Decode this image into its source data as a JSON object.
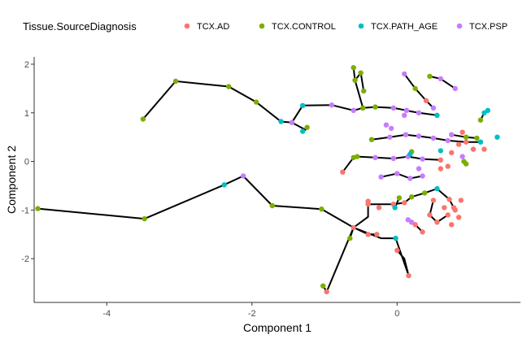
{
  "chart_data": {
    "type": "scatter",
    "title": "",
    "xlabel": "Component 1",
    "ylabel": "Component 2",
    "xlim": [
      -5.0,
      1.7
    ],
    "ylim": [
      -2.9,
      2.15
    ],
    "x_ticks": [
      -4,
      -2,
      0
    ],
    "y_ticks": [
      -2,
      -1,
      0,
      1,
      2
    ],
    "grid": false,
    "legend": {
      "title": "Tissue.SourceDiagnosis",
      "placement": "top",
      "entries": [
        {
          "name": "TCX.AD",
          "color": "#F8766D"
        },
        {
          "name": "TCX.CONTROL",
          "color": "#7CAE00"
        },
        {
          "name": "TCX.PATH_AGE",
          "color": "#00BFC4"
        },
        {
          "name": "TCX.PSP",
          "color": "#C77CFF"
        }
      ]
    },
    "edges": [
      [
        [
          -3.5,
          0.87
        ],
        [
          -3.05,
          1.65
        ],
        [
          -2.32,
          1.54
        ],
        [
          -1.94,
          1.22
        ],
        [
          -1.6,
          0.82
        ],
        [
          -1.45,
          0.8
        ],
        [
          -1.26,
          0.65
        ]
      ],
      [
        [
          -1.45,
          0.8
        ],
        [
          -1.3,
          1.15
        ],
        [
          -0.9,
          1.16
        ],
        [
          -0.6,
          1.05
        ],
        [
          -0.47,
          1.1
        ],
        [
          -0.3,
          1.12
        ]
      ],
      [
        [
          -0.47,
          1.1
        ],
        [
          -0.58,
          1.67
        ],
        [
          -0.5,
          1.82
        ]
      ],
      [
        [
          -0.58,
          1.67
        ],
        [
          -0.6,
          1.93
        ]
      ],
      [
        [
          -0.3,
          1.12
        ],
        [
          -0.05,
          1.1
        ],
        [
          0.13,
          1.05
        ]
      ],
      [
        [
          -0.5,
          1.82
        ],
        [
          -0.46,
          1.45
        ]
      ],
      [
        [
          -4.95,
          -0.97
        ],
        [
          -3.48,
          -1.18
        ],
        [
          -2.38,
          -0.48
        ],
        [
          -2.12,
          -0.3
        ],
        [
          -1.72,
          -0.91
        ],
        [
          -1.04,
          -0.98
        ],
        [
          -0.6,
          -1.36
        ],
        [
          -0.22,
          -1.58
        ],
        [
          -0.02,
          -1.58
        ],
        [
          0.16,
          -2.35
        ]
      ],
      [
        [
          -0.6,
          -1.36
        ],
        [
          -0.97,
          -2.68
        ],
        [
          -1.02,
          -2.56
        ]
      ],
      [
        [
          -0.6,
          -1.36
        ],
        [
          -0.65,
          -1.58
        ]
      ],
      [
        [
          -0.6,
          -1.36
        ],
        [
          -0.4,
          -1.14
        ],
        [
          -0.4,
          -0.82
        ]
      ],
      [
        [
          -0.6,
          -1.36
        ],
        [
          -0.4,
          -1.5
        ],
        [
          -0.28,
          -1.5
        ]
      ],
      [
        [
          -0.4,
          -0.88
        ],
        [
          -0.05,
          -0.88
        ],
        [
          0.1,
          -0.85
        ],
        [
          0.2,
          -0.73
        ],
        [
          0.38,
          -0.65
        ],
        [
          0.55,
          -0.56
        ],
        [
          0.72,
          -0.78
        ],
        [
          0.78,
          -0.95
        ]
      ],
      [
        [
          -0.35,
          0.45
        ],
        [
          -0.1,
          0.5
        ],
        [
          0.12,
          0.55
        ],
        [
          0.3,
          0.52
        ],
        [
          0.5,
          0.48
        ],
        [
          0.7,
          0.43
        ],
        [
          0.95,
          0.4
        ],
        [
          1.15,
          0.4
        ]
      ],
      [
        [
          -0.55,
          0.1
        ],
        [
          -0.3,
          0.08
        ],
        [
          -0.05,
          0.06
        ],
        [
          0.15,
          0.1
        ],
        [
          0.35,
          0.05
        ],
        [
          0.6,
          0.03
        ]
      ],
      [
        [
          -0.75,
          -0.22
        ],
        [
          -0.6,
          0.08
        ]
      ],
      [
        [
          -0.22,
          -0.32
        ],
        [
          0.0,
          -0.25
        ],
        [
          0.18,
          -0.35
        ],
        [
          0.35,
          -0.3
        ]
      ],
      [
        [
          0.03,
          -0.75
        ],
        [
          -0.03,
          -0.95
        ]
      ],
      [
        [
          0.0,
          -1.83
        ],
        [
          0.1,
          -2.0
        ],
        [
          0.16,
          -2.35
        ]
      ],
      [
        [
          0.45,
          1.75
        ],
        [
          0.6,
          1.7
        ],
        [
          0.8,
          1.5
        ]
      ],
      [
        [
          0.1,
          1.8
        ],
        [
          0.25,
          1.5
        ],
        [
          0.4,
          1.25
        ],
        [
          0.5,
          1.1
        ]
      ],
      [
        [
          0.12,
          1.05
        ],
        [
          0.3,
          1.0
        ],
        [
          0.55,
          0.95
        ]
      ],
      [
        [
          0.75,
          0.55
        ],
        [
          0.95,
          0.5
        ],
        [
          1.1,
          0.48
        ]
      ],
      [
        [
          1.15,
          0.85
        ],
        [
          1.2,
          1.0
        ],
        [
          1.25,
          1.05
        ]
      ],
      [
        [
          0.5,
          -0.8
        ],
        [
          0.45,
          -1.1
        ],
        [
          0.55,
          -1.25
        ],
        [
          0.7,
          -1.1
        ]
      ],
      [
        [
          0.15,
          -1.2
        ],
        [
          0.25,
          -1.3
        ],
        [
          0.35,
          -1.45
        ]
      ]
    ],
    "points": [
      {
        "x": -3.5,
        "y": 0.87,
        "g": "TCX.CONTROL"
      },
      {
        "x": -3.05,
        "y": 1.65,
        "g": "TCX.CONTROL"
      },
      {
        "x": -2.32,
        "y": 1.54,
        "g": "TCX.CONTROL"
      },
      {
        "x": -1.94,
        "y": 1.22,
        "g": "TCX.CONTROL"
      },
      {
        "x": -1.6,
        "y": 0.82,
        "g": "TCX.PATH_AGE"
      },
      {
        "x": -1.45,
        "y": 0.8,
        "g": "TCX.PSP"
      },
      {
        "x": -1.3,
        "y": 0.62,
        "g": "TCX.PATH_AGE"
      },
      {
        "x": -1.24,
        "y": 0.7,
        "g": "TCX.CONTROL"
      },
      {
        "x": -1.3,
        "y": 1.15,
        "g": "TCX.PATH_AGE"
      },
      {
        "x": -0.9,
        "y": 1.16,
        "g": "TCX.PSP"
      },
      {
        "x": -0.6,
        "y": 1.05,
        "g": "TCX.PSP"
      },
      {
        "x": -0.47,
        "y": 1.1,
        "g": "TCX.CONTROL"
      },
      {
        "x": -0.3,
        "y": 1.12,
        "g": "TCX.CONTROL"
      },
      {
        "x": -0.6,
        "y": 1.93,
        "g": "TCX.CONTROL"
      },
      {
        "x": -0.58,
        "y": 1.67,
        "g": "TCX.CONTROL"
      },
      {
        "x": -0.5,
        "y": 1.82,
        "g": "TCX.CONTROL"
      },
      {
        "x": -0.46,
        "y": 1.45,
        "g": "TCX.CONTROL"
      },
      {
        "x": -0.05,
        "y": 1.1,
        "g": "TCX.PSP"
      },
      {
        "x": 0.13,
        "y": 1.05,
        "g": "TCX.PSP"
      },
      {
        "x": 0.1,
        "y": 1.8,
        "g": "TCX.PSP"
      },
      {
        "x": 0.25,
        "y": 1.5,
        "g": "TCX.CONTROL"
      },
      {
        "x": 0.4,
        "y": 1.25,
        "g": "TCX.AD"
      },
      {
        "x": 0.5,
        "y": 1.1,
        "g": "TCX.PSP"
      },
      {
        "x": 0.45,
        "y": 1.75,
        "g": "TCX.CONTROL"
      },
      {
        "x": 0.6,
        "y": 1.7,
        "g": "TCX.PSP"
      },
      {
        "x": 0.8,
        "y": 1.5,
        "g": "TCX.PSP"
      },
      {
        "x": 0.3,
        "y": 1.0,
        "g": "TCX.PSP"
      },
      {
        "x": 0.55,
        "y": 0.95,
        "g": "TCX.PATH_AGE"
      },
      {
        "x": 0.1,
        "y": 0.95,
        "g": "TCX.PSP"
      },
      {
        "x": -0.15,
        "y": 0.75,
        "g": "TCX.PSP"
      },
      {
        "x": -0.08,
        "y": 0.68,
        "g": "TCX.PSP"
      },
      {
        "x": 1.15,
        "y": 0.85,
        "g": "TCX.CONTROL"
      },
      {
        "x": 1.2,
        "y": 1.0,
        "g": "TCX.PATH_AGE"
      },
      {
        "x": 1.25,
        "y": 1.05,
        "g": "TCX.PATH_AGE"
      },
      {
        "x": -0.35,
        "y": 0.45,
        "g": "TCX.CONTROL"
      },
      {
        "x": -0.1,
        "y": 0.5,
        "g": "TCX.PSP"
      },
      {
        "x": 0.12,
        "y": 0.55,
        "g": "TCX.PSP"
      },
      {
        "x": 0.3,
        "y": 0.52,
        "g": "TCX.PSP"
      },
      {
        "x": 0.5,
        "y": 0.48,
        "g": "TCX.PSP"
      },
      {
        "x": 0.7,
        "y": 0.43,
        "g": "TCX.PSP"
      },
      {
        "x": 0.95,
        "y": 0.4,
        "g": "TCX.AD"
      },
      {
        "x": 1.15,
        "y": 0.4,
        "g": "TCX.PATH_AGE"
      },
      {
        "x": 0.75,
        "y": 0.55,
        "g": "TCX.PSP"
      },
      {
        "x": 0.95,
        "y": 0.5,
        "g": "TCX.CONTROL"
      },
      {
        "x": 1.1,
        "y": 0.48,
        "g": "TCX.CONTROL"
      },
      {
        "x": 1.38,
        "y": 0.5,
        "g": "TCX.PATH_AGE"
      },
      {
        "x": 0.9,
        "y": 0.6,
        "g": "TCX.AD"
      },
      {
        "x": 0.85,
        "y": 0.35,
        "g": "TCX.AD"
      },
      {
        "x": 1.05,
        "y": 0.25,
        "g": "TCX.AD"
      },
      {
        "x": 1.2,
        "y": 0.25,
        "g": "TCX.AD"
      },
      {
        "x": 0.6,
        "y": 0.22,
        "g": "TCX.PATH_AGE"
      },
      {
        "x": 0.75,
        "y": 0.18,
        "g": "TCX.AD"
      },
      {
        "x": 0.9,
        "y": 0.1,
        "g": "TCX.PSP"
      },
      {
        "x": 0.92,
        "y": 0.0,
        "g": "TCX.CONTROL"
      },
      {
        "x": 0.95,
        "y": -0.05,
        "g": "TCX.CONTROL"
      },
      {
        "x": -0.55,
        "y": 0.1,
        "g": "TCX.CONTROL"
      },
      {
        "x": -0.3,
        "y": 0.08,
        "g": "TCX.PSP"
      },
      {
        "x": -0.05,
        "y": 0.06,
        "g": "TCX.PSP"
      },
      {
        "x": 0.15,
        "y": 0.1,
        "g": "TCX.PSP"
      },
      {
        "x": 0.35,
        "y": 0.05,
        "g": "TCX.PSP"
      },
      {
        "x": 0.6,
        "y": 0.03,
        "g": "TCX.AD"
      },
      {
        "x": 0.2,
        "y": 0.2,
        "g": "TCX.CONTROL"
      },
      {
        "x": 0.18,
        "y": 0.15,
        "g": "TCX.PATH_AGE"
      },
      {
        "x": -0.75,
        "y": -0.22,
        "g": "TCX.AD"
      },
      {
        "x": -0.6,
        "y": 0.08,
        "g": "TCX.CONTROL"
      },
      {
        "x": -0.22,
        "y": -0.32,
        "g": "TCX.PSP"
      },
      {
        "x": 0.0,
        "y": -0.25,
        "g": "TCX.PSP"
      },
      {
        "x": 0.18,
        "y": -0.35,
        "g": "TCX.PSP"
      },
      {
        "x": 0.35,
        "y": -0.3,
        "g": "TCX.PSP"
      },
      {
        "x": 0.3,
        "y": -0.15,
        "g": "TCX.PSP"
      },
      {
        "x": 0.6,
        "y": -0.15,
        "g": "TCX.AD"
      },
      {
        "x": 0.7,
        "y": -0.1,
        "g": "TCX.AD"
      },
      {
        "x": -0.4,
        "y": -0.82,
        "g": "TCX.AD"
      },
      {
        "x": -0.4,
        "y": -0.88,
        "g": "TCX.AD"
      },
      {
        "x": -0.05,
        "y": -0.88,
        "g": "TCX.AD"
      },
      {
        "x": 0.1,
        "y": -0.85,
        "g": "TCX.AD"
      },
      {
        "x": 0.2,
        "y": -0.73,
        "g": "TCX.CONTROL"
      },
      {
        "x": 0.38,
        "y": -0.65,
        "g": "TCX.CONTROL"
      },
      {
        "x": 0.55,
        "y": -0.56,
        "g": "TCX.PATH_AGE"
      },
      {
        "x": 0.72,
        "y": -0.78,
        "g": "TCX.AD"
      },
      {
        "x": 0.78,
        "y": -0.95,
        "g": "TCX.AD"
      },
      {
        "x": 0.03,
        "y": -0.75,
        "g": "TCX.CONTROL"
      },
      {
        "x": -0.03,
        "y": -0.95,
        "g": "TCX.PATH_AGE"
      },
      {
        "x": 0.5,
        "y": -0.8,
        "g": "TCX.AD"
      },
      {
        "x": 0.45,
        "y": -1.1,
        "g": "TCX.AD"
      },
      {
        "x": 0.55,
        "y": -1.25,
        "g": "TCX.AD"
      },
      {
        "x": 0.7,
        "y": -1.1,
        "g": "TCX.AD"
      },
      {
        "x": 0.65,
        "y": -0.95,
        "g": "TCX.AD"
      },
      {
        "x": 0.8,
        "y": -1.0,
        "g": "TCX.AD"
      },
      {
        "x": 0.85,
        "y": -1.15,
        "g": "TCX.AD"
      },
      {
        "x": 0.75,
        "y": -1.3,
        "g": "TCX.AD"
      },
      {
        "x": 0.88,
        "y": -0.8,
        "g": "TCX.AD"
      },
      {
        "x": 0.15,
        "y": -1.2,
        "g": "TCX.PSP"
      },
      {
        "x": 0.25,
        "y": -1.3,
        "g": "TCX.AD"
      },
      {
        "x": 0.35,
        "y": -1.45,
        "g": "TCX.AD"
      },
      {
        "x": 0.2,
        "y": -1.25,
        "g": "TCX.PSP"
      },
      {
        "x": -0.25,
        "y": -0.95,
        "g": "TCX.AD"
      },
      {
        "x": -4.95,
        "y": -0.97,
        "g": "TCX.CONTROL"
      },
      {
        "x": -3.48,
        "y": -1.18,
        "g": "TCX.CONTROL"
      },
      {
        "x": -2.38,
        "y": -0.48,
        "g": "TCX.PATH_AGE"
      },
      {
        "x": -2.12,
        "y": -0.3,
        "g": "TCX.PSP"
      },
      {
        "x": -1.72,
        "y": -0.91,
        "g": "TCX.CONTROL"
      },
      {
        "x": -1.04,
        "y": -0.98,
        "g": "TCX.CONTROL"
      },
      {
        "x": -0.6,
        "y": -1.36,
        "g": "TCX.AD"
      },
      {
        "x": -0.65,
        "y": -1.58,
        "g": "TCX.CONTROL"
      },
      {
        "x": -0.4,
        "y": -1.5,
        "g": "TCX.AD"
      },
      {
        "x": -0.28,
        "y": -1.5,
        "g": "TCX.AD"
      },
      {
        "x": -0.02,
        "y": -1.58,
        "g": "TCX.PATH_AGE"
      },
      {
        "x": 0.0,
        "y": -1.83,
        "g": "TCX.AD"
      },
      {
        "x": 0.16,
        "y": -2.35,
        "g": "TCX.AD"
      },
      {
        "x": -1.02,
        "y": -2.56,
        "g": "TCX.CONTROL"
      },
      {
        "x": -0.97,
        "y": -2.68,
        "g": "TCX.AD"
      }
    ]
  }
}
